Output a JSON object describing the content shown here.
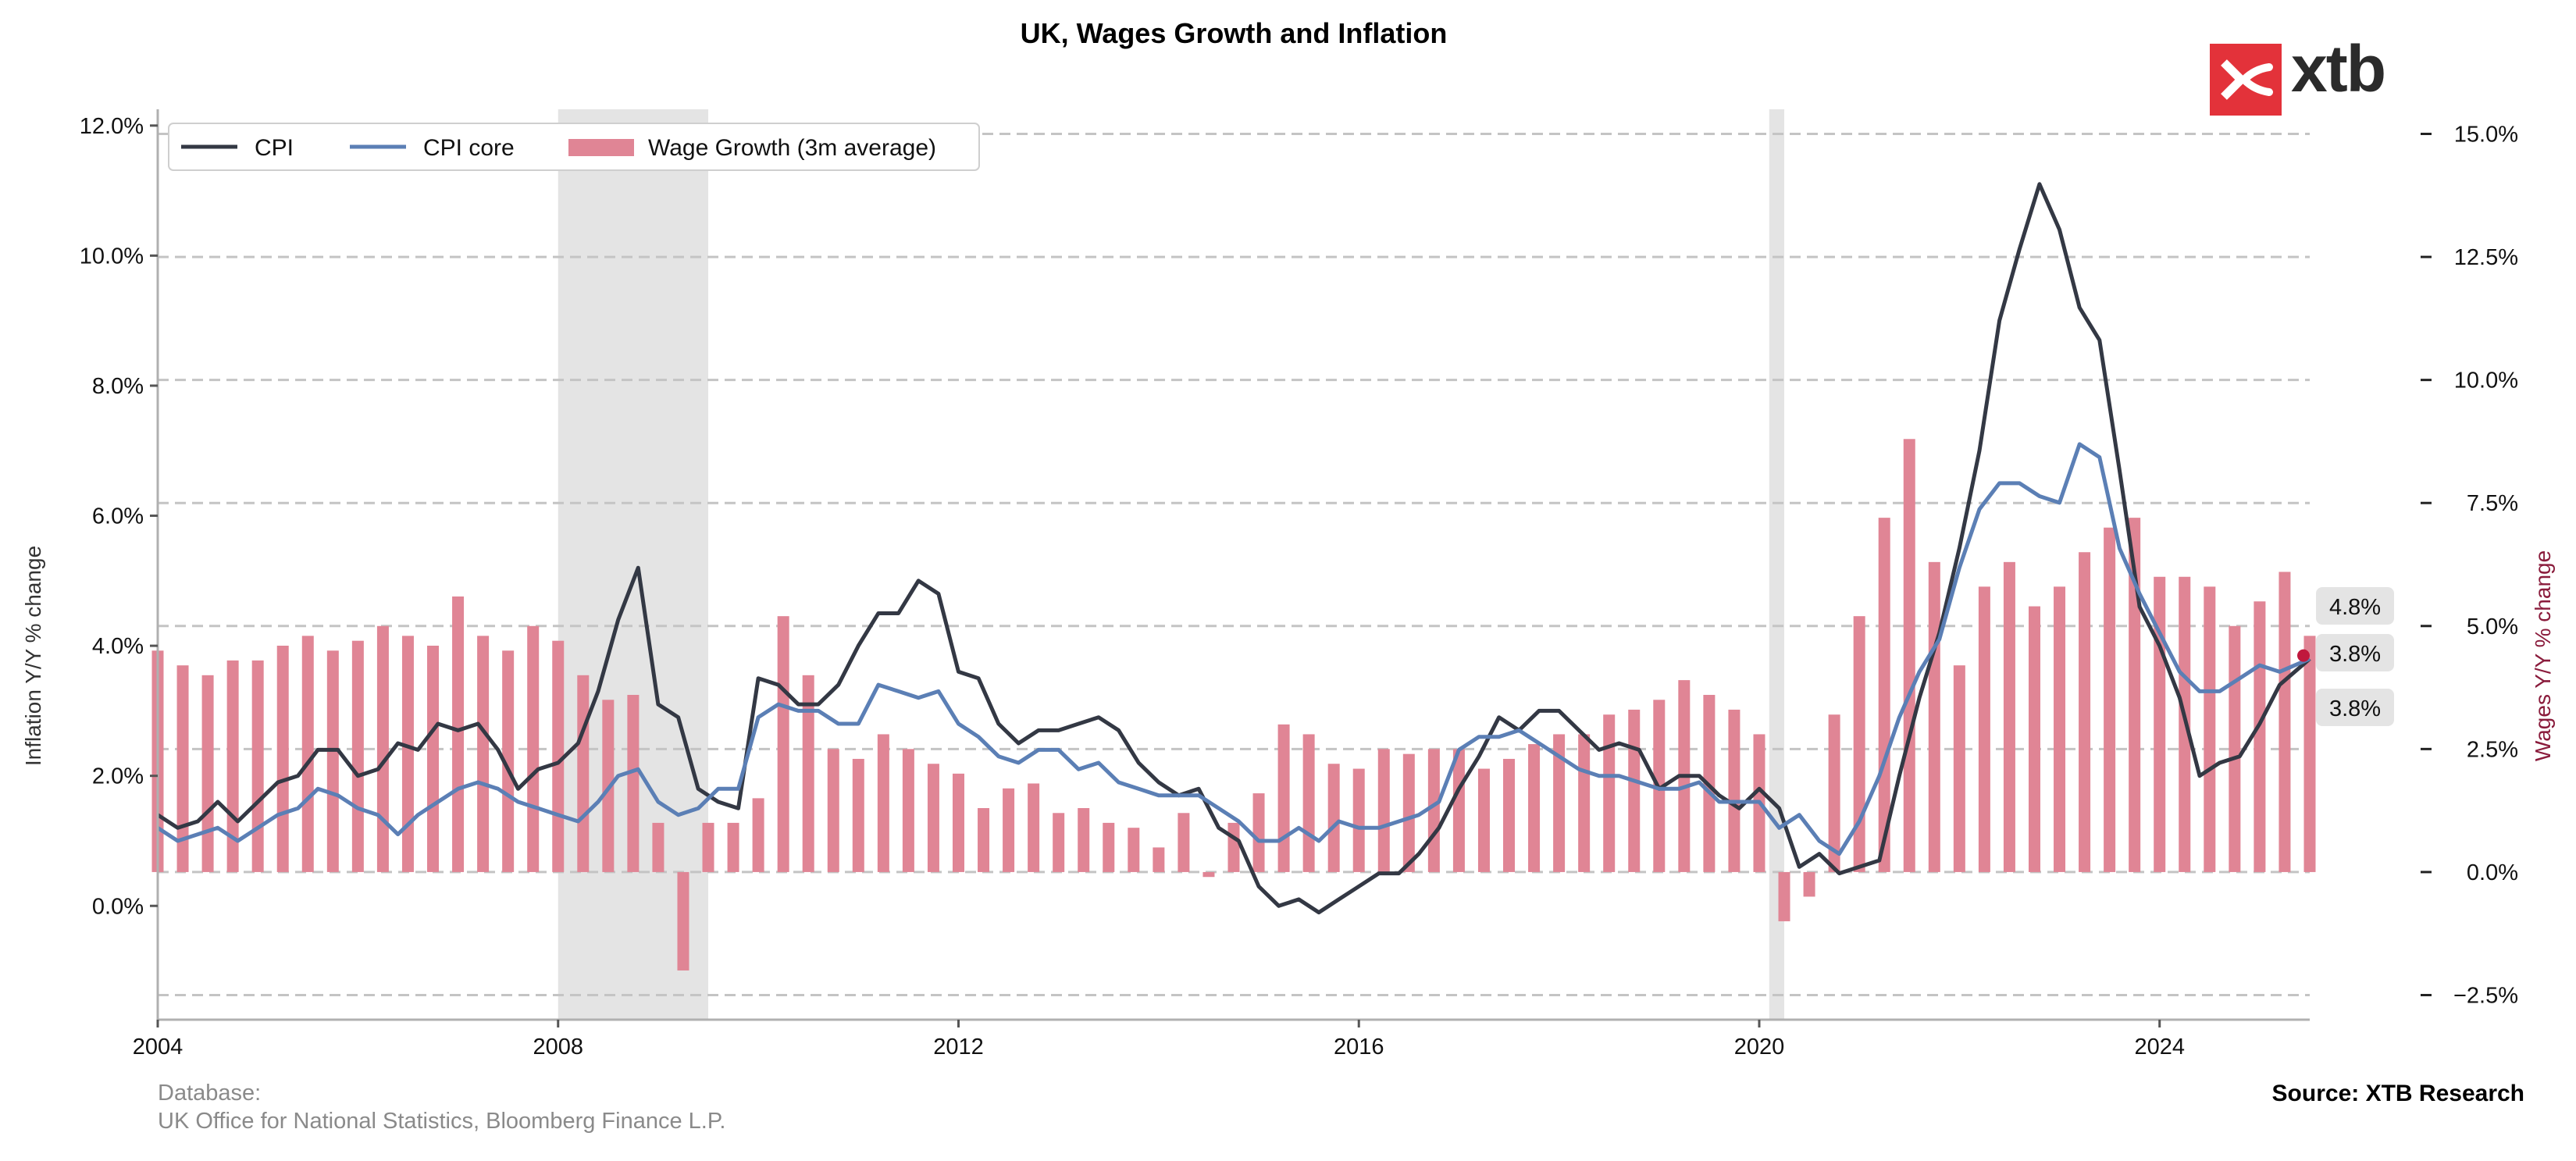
{
  "brand": {
    "logo_text": "xtb",
    "logo_color": "#e3323a"
  },
  "footer": {
    "database_label": "Database:",
    "database_sources": "UK Office for National Statistics, Bloomberg Finance L.P.",
    "source": "Source: XTB Research"
  },
  "chart_data": {
    "type": "line",
    "title": "UK, Wages Growth and Inflation",
    "ylabel": "Inflation Y/Y % change",
    "y2label": "Wages Y/Y % change",
    "xlim": [
      2004.0,
      2025.5
    ],
    "ylim": [
      -1.75,
      12.25
    ],
    "y2lim": [
      -3.0,
      15.5
    ],
    "x_ticks": [
      2004,
      2008,
      2012,
      2016,
      2020,
      2024
    ],
    "x_tick_labels": [
      "2004",
      "2008",
      "2012",
      "2016",
      "2020",
      "2024"
    ],
    "y_ticks": [
      0,
      2,
      4,
      6,
      8,
      10,
      12
    ],
    "y_tick_labels": [
      "0.0%",
      "2.0%",
      "4.0%",
      "6.0%",
      "8.0%",
      "10.0%",
      "12.0%"
    ],
    "y2_ticks": [
      -2.5,
      0,
      2.5,
      5,
      7.5,
      10,
      12.5,
      15
    ],
    "y2_tick_labels": [
      "−2.5%",
      "0.0%",
      "2.5%",
      "5.0%",
      "7.5%",
      "10.0%",
      "12.5%",
      "15.0%"
    ],
    "grid": "horizontal dashed at right-axis ticks",
    "legend_position": "top-left",
    "recessions": [
      {
        "start": 2008.0,
        "end": 2009.5
      },
      {
        "start": 2020.1,
        "end": 2020.25
      }
    ],
    "series": [
      {
        "name": "CPI",
        "axis": "left",
        "style": "line",
        "color": "#333844",
        "x": [
          2004.0,
          2004.2,
          2004.4,
          2004.6,
          2004.8,
          2005.0,
          2005.2,
          2005.4,
          2005.6,
          2005.8,
          2006.0,
          2006.2,
          2006.4,
          2006.6,
          2006.8,
          2007.0,
          2007.2,
          2007.4,
          2007.6,
          2007.8,
          2008.0,
          2008.2,
          2008.4,
          2008.6,
          2008.8,
          2009.0,
          2009.2,
          2009.4,
          2009.6,
          2009.8,
          2010.0,
          2010.2,
          2010.4,
          2010.6,
          2010.8,
          2011.0,
          2011.2,
          2011.4,
          2011.6,
          2011.8,
          2012.0,
          2012.2,
          2012.4,
          2012.6,
          2012.8,
          2013.0,
          2013.2,
          2013.4,
          2013.6,
          2013.8,
          2014.0,
          2014.2,
          2014.4,
          2014.6,
          2014.8,
          2015.0,
          2015.2,
          2015.4,
          2015.6,
          2015.8,
          2016.0,
          2016.2,
          2016.4,
          2016.6,
          2016.8,
          2017.0,
          2017.2,
          2017.4,
          2017.6,
          2017.8,
          2018.0,
          2018.2,
          2018.4,
          2018.6,
          2018.8,
          2019.0,
          2019.2,
          2019.4,
          2019.6,
          2019.8,
          2020.0,
          2020.2,
          2020.4,
          2020.6,
          2020.8,
          2021.0,
          2021.2,
          2021.4,
          2021.6,
          2021.8,
          2022.0,
          2022.2,
          2022.4,
          2022.6,
          2022.8,
          2023.0,
          2023.2,
          2023.4,
          2023.6,
          2023.8,
          2024.0,
          2024.2,
          2024.4,
          2024.6,
          2024.8,
          2025.0,
          2025.2,
          2025.5
        ],
        "values": [
          1.4,
          1.2,
          1.3,
          1.6,
          1.3,
          1.6,
          1.9,
          2.0,
          2.4,
          2.4,
          2.0,
          2.1,
          2.5,
          2.4,
          2.8,
          2.7,
          2.8,
          2.4,
          1.8,
          2.1,
          2.2,
          2.5,
          3.3,
          4.4,
          5.2,
          3.1,
          2.9,
          1.8,
          1.6,
          1.5,
          3.5,
          3.4,
          3.1,
          3.1,
          3.4,
          4.0,
          4.5,
          4.5,
          5.0,
          4.8,
          3.6,
          3.5,
          2.8,
          2.5,
          2.7,
          2.7,
          2.8,
          2.9,
          2.7,
          2.2,
          1.9,
          1.7,
          1.8,
          1.2,
          1.0,
          0.3,
          0.0,
          0.1,
          -0.1,
          0.1,
          0.3,
          0.5,
          0.5,
          0.8,
          1.2,
          1.8,
          2.3,
          2.9,
          2.7,
          3.0,
          3.0,
          2.7,
          2.4,
          2.5,
          2.4,
          1.8,
          2.0,
          2.0,
          1.7,
          1.5,
          1.8,
          1.5,
          0.6,
          0.8,
          0.5,
          0.6,
          0.7,
          2.0,
          3.2,
          4.2,
          5.5,
          7.0,
          9.0,
          10.1,
          11.1,
          10.4,
          9.2,
          8.7,
          6.7,
          4.6,
          4.0,
          3.2,
          2.0,
          2.2,
          2.3,
          2.8,
          3.4,
          3.8
        ],
        "last_label": "3.8%"
      },
      {
        "name": "CPI core",
        "axis": "left",
        "style": "line",
        "color": "#5b7fb5",
        "x": [
          2004.0,
          2004.2,
          2004.4,
          2004.6,
          2004.8,
          2005.0,
          2005.2,
          2005.4,
          2005.6,
          2005.8,
          2006.0,
          2006.2,
          2006.4,
          2006.6,
          2006.8,
          2007.0,
          2007.2,
          2007.4,
          2007.6,
          2007.8,
          2008.0,
          2008.2,
          2008.4,
          2008.6,
          2008.8,
          2009.0,
          2009.2,
          2009.4,
          2009.6,
          2009.8,
          2010.0,
          2010.2,
          2010.4,
          2010.6,
          2010.8,
          2011.0,
          2011.2,
          2011.4,
          2011.6,
          2011.8,
          2012.0,
          2012.2,
          2012.4,
          2012.6,
          2012.8,
          2013.0,
          2013.2,
          2013.4,
          2013.6,
          2013.8,
          2014.0,
          2014.2,
          2014.4,
          2014.6,
          2014.8,
          2015.0,
          2015.2,
          2015.4,
          2015.6,
          2015.8,
          2016.0,
          2016.2,
          2016.4,
          2016.6,
          2016.8,
          2017.0,
          2017.2,
          2017.4,
          2017.6,
          2017.8,
          2018.0,
          2018.2,
          2018.4,
          2018.6,
          2018.8,
          2019.0,
          2019.2,
          2019.4,
          2019.6,
          2019.8,
          2020.0,
          2020.2,
          2020.4,
          2020.6,
          2020.8,
          2021.0,
          2021.2,
          2021.4,
          2021.6,
          2021.8,
          2022.0,
          2022.2,
          2022.4,
          2022.6,
          2022.8,
          2023.0,
          2023.2,
          2023.4,
          2023.6,
          2023.8,
          2024.0,
          2024.2,
          2024.4,
          2024.6,
          2024.8,
          2025.0,
          2025.2,
          2025.5
        ],
        "values": [
          1.2,
          1.0,
          1.1,
          1.2,
          1.0,
          1.2,
          1.4,
          1.5,
          1.8,
          1.7,
          1.5,
          1.4,
          1.1,
          1.4,
          1.6,
          1.8,
          1.9,
          1.8,
          1.6,
          1.5,
          1.4,
          1.3,
          1.6,
          2.0,
          2.1,
          1.6,
          1.4,
          1.5,
          1.8,
          1.8,
          2.9,
          3.1,
          3.0,
          3.0,
          2.8,
          2.8,
          3.4,
          3.3,
          3.2,
          3.3,
          2.8,
          2.6,
          2.3,
          2.2,
          2.4,
          2.4,
          2.1,
          2.2,
          1.9,
          1.8,
          1.7,
          1.7,
          1.7,
          1.5,
          1.3,
          1.0,
          1.0,
          1.2,
          1.0,
          1.3,
          1.2,
          1.2,
          1.3,
          1.4,
          1.6,
          2.4,
          2.6,
          2.6,
          2.7,
          2.5,
          2.3,
          2.1,
          2.0,
          2.0,
          1.9,
          1.8,
          1.8,
          1.9,
          1.6,
          1.6,
          1.6,
          1.2,
          1.4,
          1.0,
          0.8,
          1.3,
          2.0,
          2.9,
          3.6,
          4.1,
          5.2,
          6.1,
          6.5,
          6.5,
          6.3,
          6.2,
          7.1,
          6.9,
          5.5,
          4.8,
          4.2,
          3.6,
          3.3,
          3.3,
          3.5,
          3.7,
          3.6,
          3.8
        ],
        "last_label": "3.8%"
      },
      {
        "name": "Wage Growth (3m average)",
        "axis": "right",
        "style": "bar",
        "color": "#e08595",
        "x": [
          2004.0,
          2004.25,
          2004.5,
          2004.75,
          2005.0,
          2005.25,
          2005.5,
          2005.75,
          2006.0,
          2006.25,
          2006.5,
          2006.75,
          2007.0,
          2007.25,
          2007.5,
          2007.75,
          2008.0,
          2008.25,
          2008.5,
          2008.75,
          2009.0,
          2009.25,
          2009.5,
          2009.75,
          2010.0,
          2010.25,
          2010.5,
          2010.75,
          2011.0,
          2011.25,
          2011.5,
          2011.75,
          2012.0,
          2012.25,
          2012.5,
          2012.75,
          2013.0,
          2013.25,
          2013.5,
          2013.75,
          2014.0,
          2014.25,
          2014.5,
          2014.75,
          2015.0,
          2015.25,
          2015.5,
          2015.75,
          2016.0,
          2016.25,
          2016.5,
          2016.75,
          2017.0,
          2017.25,
          2017.5,
          2017.75,
          2018.0,
          2018.25,
          2018.5,
          2018.75,
          2019.0,
          2019.25,
          2019.5,
          2019.75,
          2020.0,
          2020.25,
          2020.5,
          2020.75,
          2021.0,
          2021.25,
          2021.5,
          2021.75,
          2022.0,
          2022.25,
          2022.5,
          2022.75,
          2023.0,
          2023.25,
          2023.5,
          2023.75,
          2024.0,
          2024.25,
          2024.5,
          2024.75,
          2025.0,
          2025.25,
          2025.5
        ],
        "values": [
          4.5,
          4.2,
          4.0,
          4.3,
          4.3,
          4.6,
          4.8,
          4.5,
          4.7,
          5.0,
          4.8,
          4.6,
          5.6,
          4.8,
          4.5,
          5.0,
          4.7,
          4.0,
          3.5,
          3.6,
          1.0,
          -2.0,
          1.0,
          1.0,
          1.5,
          5.2,
          4.0,
          2.5,
          2.3,
          2.8,
          2.5,
          2.2,
          2.0,
          1.3,
          1.7,
          1.8,
          1.2,
          1.3,
          1.0,
          0.9,
          0.5,
          1.2,
          -0.1,
          1.0,
          1.6,
          3.0,
          2.8,
          2.2,
          2.1,
          2.5,
          2.4,
          2.5,
          2.5,
          2.1,
          2.3,
          2.6,
          2.8,
          2.8,
          3.2,
          3.3,
          3.5,
          3.9,
          3.6,
          3.3,
          2.8,
          -1.0,
          -0.5,
          3.2,
          5.2,
          7.2,
          8.8,
          6.3,
          4.2,
          5.8,
          6.3,
          5.4,
          5.8,
          6.5,
          7.0,
          7.2,
          6.0,
          6.0,
          5.8,
          5.0,
          5.5,
          6.1,
          4.8
        ],
        "last_label": "4.8%"
      }
    ]
  }
}
